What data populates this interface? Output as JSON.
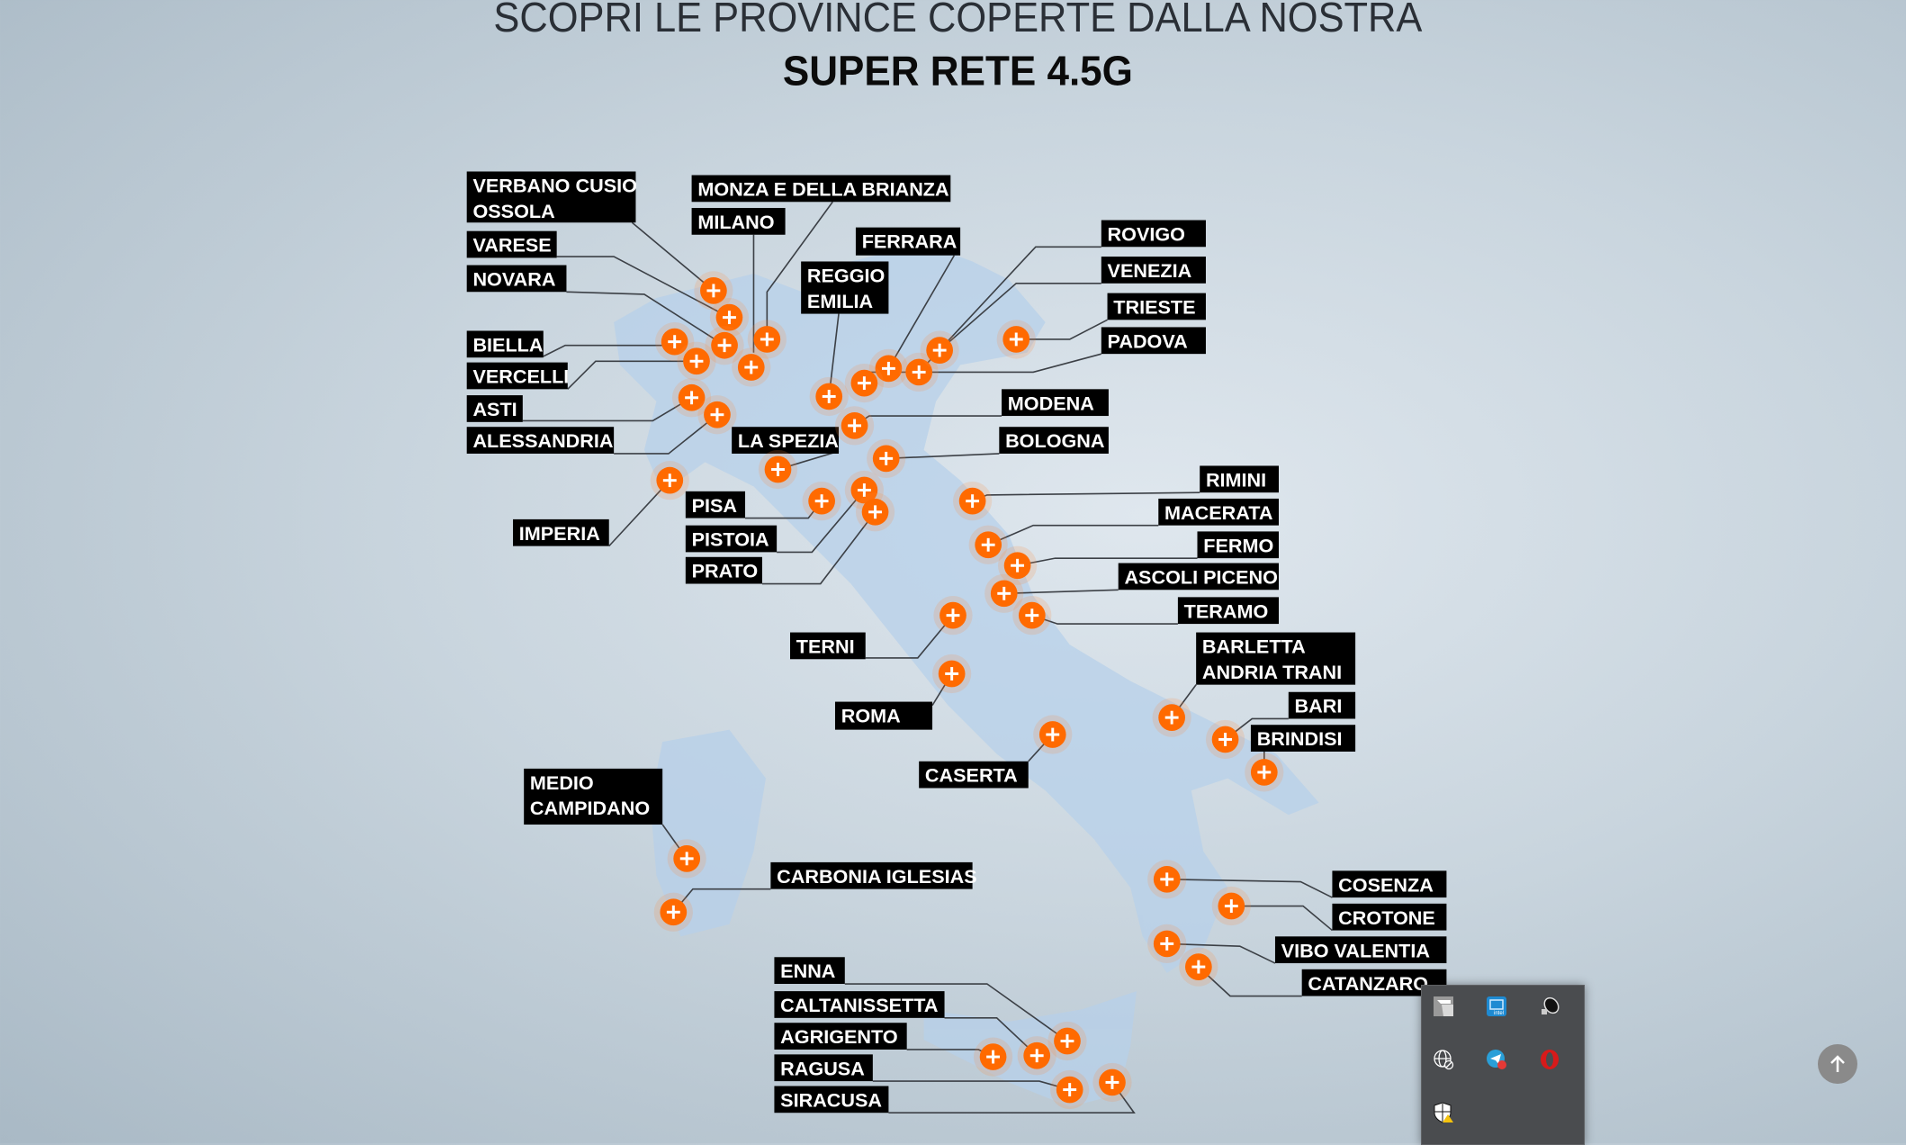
{
  "header": {
    "title_line1": "SCOPRI LE PROVINCE COPERTE DALLA NOSTRA",
    "title_line2": "SUPER RETE 4.5G"
  },
  "colors": {
    "marker": "#ff6a00",
    "label_bg": "#000000",
    "label_text": "#ffffff",
    "map_fill": "#b7d0ea"
  },
  "provinces": [
    {
      "lines": [
        "VERBANO CUSIO",
        "OSSOLA"
      ]
    },
    {
      "lines": [
        "MONZA E DELLA BRIANZA"
      ]
    },
    {
      "lines": [
        "MILANO"
      ]
    },
    {
      "lines": [
        "FERRARA"
      ]
    },
    {
      "lines": [
        "REGGIO",
        "EMILIA"
      ]
    },
    {
      "lines": [
        "ROVIGO"
      ]
    },
    {
      "lines": [
        "VENEZIA"
      ]
    },
    {
      "lines": [
        "TRIESTE"
      ]
    },
    {
      "lines": [
        "PADOVA"
      ]
    },
    {
      "lines": [
        "VARESE"
      ]
    },
    {
      "lines": [
        "NOVARA"
      ]
    },
    {
      "lines": [
        "BIELLA"
      ]
    },
    {
      "lines": [
        "VERCELLI"
      ]
    },
    {
      "lines": [
        "ASTI"
      ]
    },
    {
      "lines": [
        "ALESSANDRIA"
      ]
    },
    {
      "lines": [
        "LA SPEZIA"
      ]
    },
    {
      "lines": [
        "MODENA"
      ]
    },
    {
      "lines": [
        "BOLOGNA"
      ]
    },
    {
      "lines": [
        "IMPERIA"
      ]
    },
    {
      "lines": [
        "PISA"
      ]
    },
    {
      "lines": [
        "PISTOIA"
      ]
    },
    {
      "lines": [
        "PRATO"
      ]
    },
    {
      "lines": [
        "RIMINI"
      ]
    },
    {
      "lines": [
        "MACERATA"
      ]
    },
    {
      "lines": [
        "FERMO"
      ]
    },
    {
      "lines": [
        "ASCOLI PICENO"
      ]
    },
    {
      "lines": [
        "TERAMO"
      ]
    },
    {
      "lines": [
        "TERNI"
      ]
    },
    {
      "lines": [
        "ROMA"
      ]
    },
    {
      "lines": [
        "CASERTA"
      ]
    },
    {
      "lines": [
        "BARLETTA",
        "ANDRIA TRANI"
      ]
    },
    {
      "lines": [
        "BARI"
      ]
    },
    {
      "lines": [
        "BRINDISI"
      ]
    },
    {
      "lines": [
        "MEDIO",
        "CAMPIDANO"
      ]
    },
    {
      "lines": [
        "CARBONIA IGLESIAS"
      ]
    },
    {
      "lines": [
        "COSENZA"
      ]
    },
    {
      "lines": [
        "CROTONE"
      ]
    },
    {
      "lines": [
        "VIBO VALENTIA"
      ]
    },
    {
      "lines": [
        "CATANZARO"
      ]
    },
    {
      "lines": [
        "ENNA"
      ]
    },
    {
      "lines": [
        "CALTANISSETTA"
      ]
    },
    {
      "lines": [
        "AGRIGENTO"
      ]
    },
    {
      "lines": [
        "RAGUSA"
      ]
    },
    {
      "lines": [
        "SIRACUSA"
      ]
    }
  ],
  "tray": {
    "icons": [
      "app-g-icon",
      "intel-graphics-icon",
      "speaker-icon",
      "network-blocked-icon",
      "telegram-icon",
      "opera-icon",
      "windows-security-warning-icon"
    ]
  },
  "scroll_top": {
    "icon": "arrow-up-icon"
  }
}
